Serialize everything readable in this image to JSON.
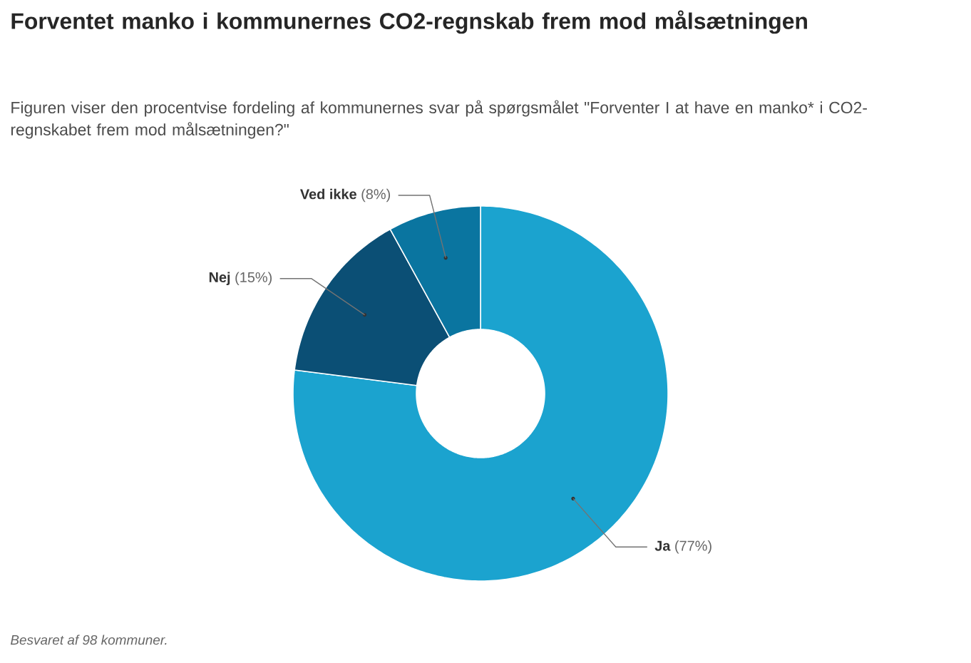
{
  "chart_data": {
    "type": "donut",
    "title": "Forventet manko i kommunernes CO2-regnskab frem mod målsætningen",
    "subtitle": "Figuren viser den procentvise fordeling af kommunernes svar på spørgsmålet \"Forventer I at have en manko* i CO2-regnskabet frem mod målsætningen?\"",
    "categories": [
      "Ja",
      "Nej",
      "Ved ikke"
    ],
    "values": [
      77,
      15,
      8
    ],
    "colors": [
      "#1ba3cf",
      "#0b4f75",
      "#0a75a0"
    ],
    "value_labels": [
      "(77%)",
      "(15%)",
      "(8%)"
    ],
    "annotations": [
      "Besvaret af 98 kommuner."
    ]
  }
}
